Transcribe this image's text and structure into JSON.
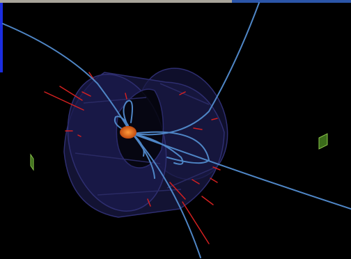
{
  "scene": {
    "subject": "particle-collision-event-display",
    "colors": {
      "background": "#000000",
      "detector": "#1c1c4a",
      "detector_edge": "#2a2a6a",
      "track": "#4f86c6",
      "energy_deposit": "#d42020",
      "vertex": "#e0621a",
      "muon_chamber": "#3a6a1a",
      "muon_chamber_edge": "#8ac44a"
    }
  },
  "progress": {
    "fraction": 0.66,
    "fill_color": "#a8a49a",
    "track_color": "#2b55a8"
  },
  "side_marker": {
    "color": "#1b2de0"
  }
}
